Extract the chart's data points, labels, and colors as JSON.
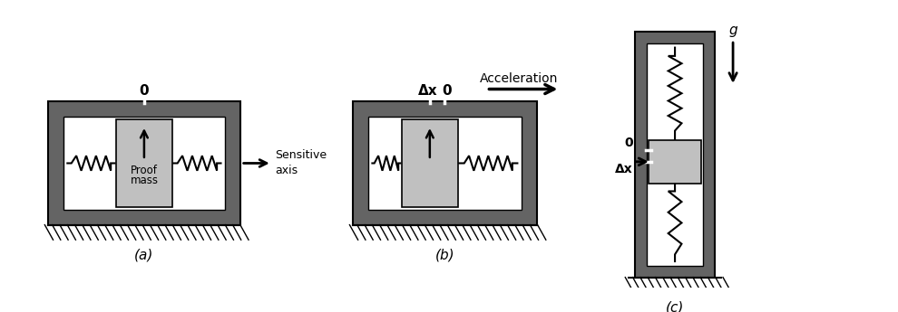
{
  "bg_color": "#ffffff",
  "dark_gray": "#646464",
  "light_gray": "#c0c0c0",
  "white": "#ffffff",
  "black": "#000000",
  "label_a": "(a)",
  "label_b": "(b)",
  "label_c": "(c)",
  "sensitive_axis_text_1": "Sensitive",
  "sensitive_axis_text_2": "axis",
  "acceleration_text": "Acceleration",
  "proof_mass_text_1": "Proof",
  "proof_mass_text_2": "mass",
  "zero_label": "0",
  "deltax_label": "Δx",
  "g_label": "g",
  "fig_width": 9.9,
  "fig_height": 3.45,
  "dpi": 100
}
